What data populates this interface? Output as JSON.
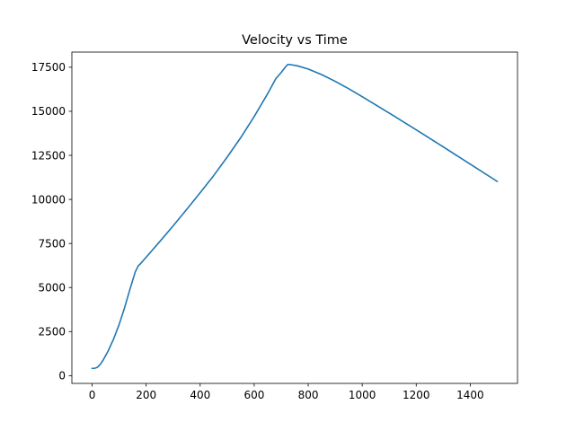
{
  "chart_data": {
    "type": "line",
    "title": "Velocity vs Time",
    "xlabel": "",
    "ylabel": "",
    "xlim": [
      -75,
      1575
    ],
    "ylim": [
      -440,
      18360
    ],
    "xticks": [
      0,
      200,
      400,
      600,
      800,
      1000,
      1200,
      1400
    ],
    "yticks": [
      0,
      2500,
      5000,
      7500,
      10000,
      12500,
      15000,
      17500
    ],
    "xtick_labels": [
      "0",
      "200",
      "400",
      "600",
      "800",
      "1000",
      "1200",
      "1400"
    ],
    "ytick_labels": [
      "0",
      "2500",
      "5000",
      "7500",
      "10000",
      "12500",
      "15000",
      "17500"
    ],
    "grid": false,
    "series": [
      {
        "color": "#1f77b4",
        "x": [
          0,
          10,
          20,
          30,
          40,
          60,
          80,
          100,
          120,
          140,
          160,
          172,
          176,
          200,
          250,
          300,
          350,
          400,
          450,
          500,
          550,
          600,
          650,
          680,
          700,
          715,
          724,
          730,
          760,
          800,
          850,
          900,
          950,
          1000,
          1100,
          1200,
          1300,
          1400,
          1500
        ],
        "y": [
          410,
          420,
          480,
          640,
          860,
          1420,
          2100,
          2900,
          3850,
          4900,
          5900,
          6260,
          6300,
          6720,
          7600,
          8500,
          9430,
          10380,
          11350,
          12400,
          13500,
          14700,
          16000,
          16850,
          17200,
          17500,
          17650,
          17660,
          17580,
          17400,
          17080,
          16700,
          16280,
          15830,
          14900,
          13950,
          12980,
          12000,
          11020
        ]
      }
    ]
  }
}
